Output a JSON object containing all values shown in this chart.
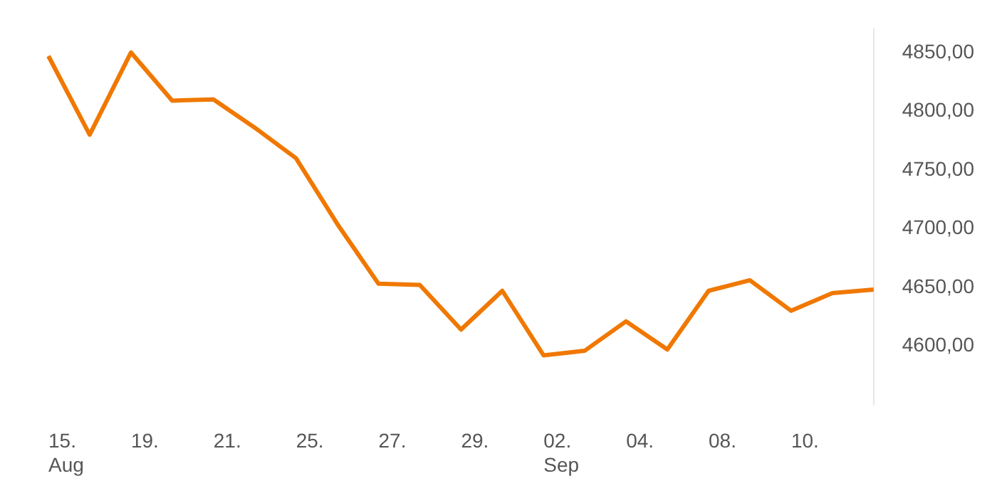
{
  "chart_data": {
    "type": "line",
    "categories": [
      "15.\nAug",
      null,
      "19.",
      null,
      "21.",
      null,
      "25.",
      null,
      "27.",
      null,
      "29.",
      null,
      "02.\nSep",
      null,
      "04.",
      null,
      "08.",
      null,
      "10.",
      null,
      null
    ],
    "series": [
      {
        "color": "#f07800",
        "values": [
          4847,
          4780,
          4850,
          4809,
          4810,
          4786,
          4760,
          4704,
          4653,
          4652,
          4614,
          4647,
          4592,
          4596,
          4621,
          4597,
          4647,
          4656,
          4630,
          4645,
          4648
        ]
      }
    ],
    "ylim": [
      4550,
      4870
    ],
    "yticks": [
      {
        "value": 4600,
        "label": "4600,00"
      },
      {
        "value": 4650,
        "label": "4650,00"
      },
      {
        "value": 4700,
        "label": "4700,00"
      },
      {
        "value": 4750,
        "label": "4750,00"
      },
      {
        "value": 4800,
        "label": "4800,00"
      },
      {
        "value": 4850,
        "label": "4850,00"
      }
    ],
    "grid": false,
    "legend": false,
    "marker": "none",
    "line_style": "solid"
  }
}
